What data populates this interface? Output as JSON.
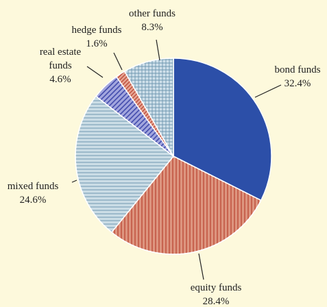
{
  "chart_data": {
    "type": "pie",
    "categories": [
      "bond funds",
      "equity funds",
      "mixed funds",
      "real estate funds",
      "hedge funds",
      "other funds"
    ],
    "values": [
      32.4,
      28.4,
      24.6,
      4.6,
      1.6,
      8.3
    ],
    "value_labels": [
      "32.4%",
      "28.4%",
      "24.6%",
      "4.6%",
      "1.6%",
      "8.3%"
    ],
    "colors": [
      "#2c4fa8",
      "#dd957f",
      "#cbdde6",
      "#a2a6de",
      "#e6a593",
      "#cfe0ea"
    ]
  }
}
